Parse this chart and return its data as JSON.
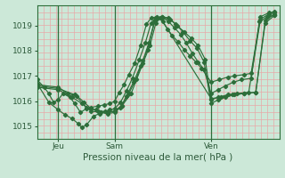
{
  "xlabel": "Pression niveau de la mer( hPa )",
  "background_color": "#cce8d8",
  "line_color": "#2d6e3a",
  "ylim": [
    1014.5,
    1019.8
  ],
  "xlim": [
    0,
    10.3
  ],
  "yticks": [
    1015,
    1016,
    1017,
    1018,
    1019
  ],
  "xtick_positions": [
    0.9,
    3.3,
    7.4
  ],
  "xtick_labels": [
    "Jeu",
    "Sam",
    "Ven"
  ],
  "vlines": [
    0.9,
    3.3,
    7.4
  ],
  "n_vgrid": 40,
  "n_hgrid": 21,
  "series": [
    {
      "points": [
        [
          0.0,
          1016.85
        ],
        [
          0.3,
          1016.55
        ],
        [
          0.5,
          1016.3
        ],
        [
          0.7,
          1015.95
        ],
        [
          0.9,
          1016.05
        ],
        [
          1.1,
          1016.3
        ],
        [
          1.4,
          1016.15
        ],
        [
          1.6,
          1015.9
        ],
        [
          1.85,
          1015.55
        ],
        [
          2.1,
          1015.7
        ],
        [
          2.3,
          1015.75
        ],
        [
          2.6,
          1015.8
        ],
        [
          2.85,
          1015.85
        ],
        [
          3.1,
          1015.9
        ],
        [
          3.3,
          1016.0
        ],
        [
          3.5,
          1016.35
        ],
        [
          3.7,
          1016.65
        ],
        [
          3.9,
          1017.05
        ],
        [
          4.15,
          1017.5
        ],
        [
          4.4,
          1018.2
        ],
        [
          4.65,
          1019.05
        ],
        [
          4.85,
          1019.3
        ],
        [
          5.1,
          1019.35
        ],
        [
          5.35,
          1019.15
        ],
        [
          5.55,
          1018.85
        ],
        [
          5.75,
          1018.6
        ],
        [
          6.0,
          1018.35
        ],
        [
          6.25,
          1018.05
        ],
        [
          6.5,
          1017.8
        ],
        [
          6.75,
          1017.55
        ],
        [
          7.0,
          1017.3
        ],
        [
          7.4,
          1016.75
        ],
        [
          7.75,
          1016.85
        ],
        [
          8.1,
          1016.95
        ],
        [
          8.4,
          1017.0
        ],
        [
          8.8,
          1017.05
        ],
        [
          9.1,
          1017.1
        ],
        [
          9.5,
          1019.35
        ],
        [
          9.85,
          1019.5
        ],
        [
          10.1,
          1019.55
        ]
      ]
    },
    {
      "points": [
        [
          0.0,
          1016.7
        ],
        [
          0.5,
          1015.95
        ],
        [
          0.9,
          1015.65
        ],
        [
          1.2,
          1015.45
        ],
        [
          1.5,
          1015.3
        ],
        [
          1.75,
          1015.1
        ],
        [
          1.9,
          1014.95
        ],
        [
          2.1,
          1015.05
        ],
        [
          2.4,
          1015.4
        ],
        [
          2.65,
          1015.5
        ],
        [
          2.9,
          1015.6
        ],
        [
          3.1,
          1015.65
        ],
        [
          3.3,
          1015.7
        ],
        [
          3.55,
          1015.95
        ],
        [
          3.8,
          1016.4
        ],
        [
          4.05,
          1016.9
        ],
        [
          4.35,
          1017.65
        ],
        [
          4.6,
          1018.3
        ],
        [
          4.85,
          1019.1
        ],
        [
          5.05,
          1019.3
        ],
        [
          5.3,
          1019.35
        ],
        [
          5.6,
          1019.15
        ],
        [
          5.85,
          1018.9
        ],
        [
          6.1,
          1018.65
        ],
        [
          6.35,
          1018.3
        ],
        [
          6.6,
          1017.9
        ],
        [
          6.85,
          1017.55
        ],
        [
          7.1,
          1017.25
        ],
        [
          7.4,
          1016.3
        ],
        [
          7.7,
          1016.45
        ],
        [
          8.0,
          1016.6
        ],
        [
          8.35,
          1016.75
        ],
        [
          8.7,
          1016.85
        ],
        [
          9.1,
          1016.9
        ],
        [
          9.45,
          1019.15
        ],
        [
          9.8,
          1019.35
        ],
        [
          10.1,
          1019.4
        ]
      ]
    },
    {
      "points": [
        [
          0.0,
          1016.65
        ],
        [
          0.9,
          1016.55
        ],
        [
          1.3,
          1016.3
        ],
        [
          1.7,
          1016.2
        ],
        [
          2.0,
          1015.95
        ],
        [
          2.3,
          1015.7
        ],
        [
          2.6,
          1015.6
        ],
        [
          3.0,
          1015.55
        ],
        [
          3.3,
          1015.6
        ],
        [
          3.6,
          1015.8
        ],
        [
          3.9,
          1016.3
        ],
        [
          4.2,
          1016.85
        ],
        [
          4.5,
          1017.6
        ],
        [
          4.75,
          1018.3
        ],
        [
          5.0,
          1019.2
        ],
        [
          5.25,
          1019.3
        ],
        [
          7.4,
          1016.1
        ],
        [
          7.8,
          1016.15
        ],
        [
          8.3,
          1016.25
        ],
        [
          8.8,
          1016.3
        ],
        [
          9.3,
          1016.35
        ],
        [
          9.7,
          1019.2
        ],
        [
          10.1,
          1019.45
        ]
      ]
    },
    {
      "points": [
        [
          0.0,
          1016.6
        ],
        [
          0.9,
          1016.5
        ],
        [
          1.6,
          1016.25
        ],
        [
          2.1,
          1015.75
        ],
        [
          2.5,
          1015.65
        ],
        [
          3.0,
          1015.55
        ],
        [
          3.3,
          1015.6
        ],
        [
          3.6,
          1015.8
        ],
        [
          4.0,
          1016.3
        ],
        [
          4.5,
          1017.5
        ],
        [
          4.8,
          1018.2
        ],
        [
          5.05,
          1019.1
        ],
        [
          5.3,
          1019.35
        ],
        [
          5.6,
          1019.3
        ],
        [
          5.9,
          1019.05
        ],
        [
          6.2,
          1018.75
        ],
        [
          6.5,
          1018.4
        ],
        [
          6.8,
          1018.1
        ],
        [
          7.1,
          1017.55
        ],
        [
          7.4,
          1015.9
        ],
        [
          7.7,
          1016.05
        ],
        [
          8.0,
          1016.15
        ],
        [
          8.4,
          1016.25
        ],
        [
          8.8,
          1016.3
        ],
        [
          9.3,
          1016.35
        ],
        [
          9.7,
          1019.1
        ],
        [
          10.1,
          1019.4
        ]
      ]
    },
    {
      "points": [
        [
          0.0,
          1016.55
        ],
        [
          0.9,
          1016.45
        ],
        [
          1.5,
          1016.15
        ],
        [
          1.9,
          1015.9
        ],
        [
          2.3,
          1015.6
        ],
        [
          2.7,
          1015.55
        ],
        [
          3.0,
          1015.5
        ],
        [
          3.3,
          1015.55
        ],
        [
          3.55,
          1015.75
        ],
        [
          3.8,
          1016.2
        ],
        [
          4.1,
          1016.75
        ],
        [
          4.4,
          1017.4
        ],
        [
          4.7,
          1018.05
        ],
        [
          5.0,
          1019.15
        ],
        [
          5.3,
          1019.3
        ],
        [
          5.65,
          1019.25
        ],
        [
          5.95,
          1019.0
        ],
        [
          6.25,
          1018.75
        ],
        [
          6.55,
          1018.5
        ],
        [
          6.85,
          1018.2
        ],
        [
          7.15,
          1017.65
        ],
        [
          7.4,
          1016.05
        ],
        [
          7.7,
          1016.15
        ],
        [
          8.1,
          1016.25
        ],
        [
          8.5,
          1016.3
        ],
        [
          9.0,
          1016.35
        ],
        [
          9.5,
          1019.25
        ],
        [
          9.85,
          1019.45
        ],
        [
          10.1,
          1019.5
        ]
      ]
    }
  ]
}
